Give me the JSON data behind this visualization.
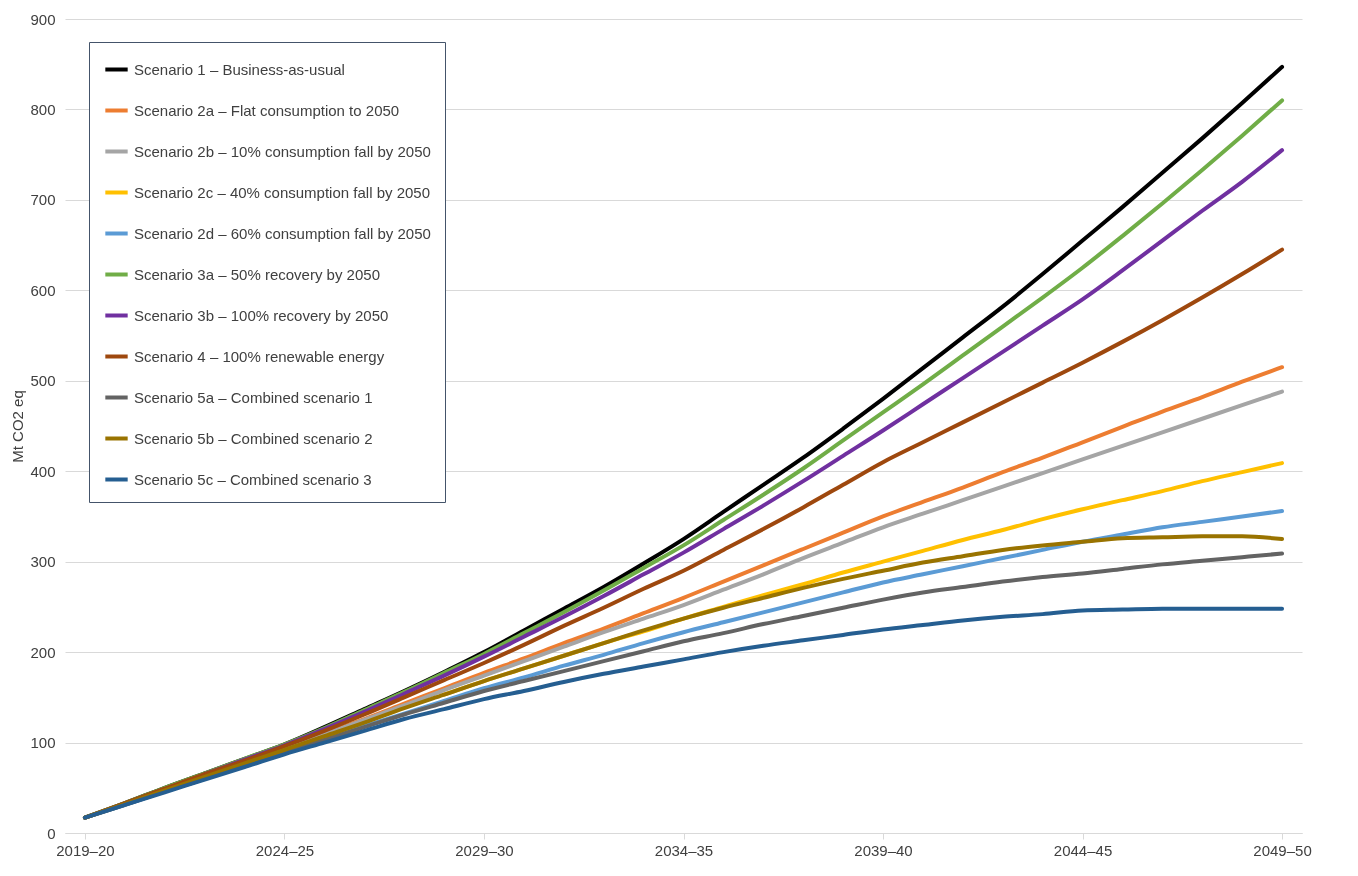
{
  "chart_data": {
    "type": "line",
    "ylabel": "Mt CO2 eq",
    "categories": [
      "2019–20",
      null,
      null,
      null,
      null,
      "2024–25",
      null,
      null,
      null,
      null,
      "2029–30",
      null,
      null,
      null,
      null,
      "2034–35",
      null,
      null,
      null,
      null,
      "2039–40",
      null,
      null,
      null,
      null,
      "2044–45",
      null,
      null,
      null,
      null,
      "2049–50"
    ],
    "ylim": [
      0,
      900
    ],
    "yticks": [
      0,
      100,
      200,
      300,
      400,
      500,
      600,
      700,
      800,
      900
    ],
    "grid": "y",
    "legend": "top left",
    "series": [
      {
        "name": "Scenario 1 – Business-as-usual",
        "color": "#000000",
        "values": [
          17,
          33,
          50,
          66,
          82,
          98,
          117,
          137,
          157,
          178,
          200,
          224,
          248,
          272,
          298,
          325,
          355,
          385,
          415,
          447,
          480,
          514,
          548,
          582,
          618,
          655,
          692,
          730,
          768,
          807,
          847
        ]
      },
      {
        "name": "Scenario 2a – Flat consumption to 2050",
        "color": "#ed7d31",
        "values": [
          null,
          null,
          null,
          null,
          null,
          null,
          110,
          126,
          143,
          160,
          177,
          193,
          210,
          226,
          243,
          260,
          278,
          296,
          314,
          332,
          350,
          366,
          382,
          399,
          415,
          432,
          449,
          466,
          482,
          499,
          515
        ]
      },
      {
        "name": "Scenario 2b – 10% consumption fall by 2050",
        "color": "#a5a5a5",
        "values": [
          17,
          32,
          48,
          63,
          78,
          93,
          109,
          125,
          141,
          158,
          174,
          190,
          206,
          222,
          237,
          252,
          269,
          286,
          304,
          321,
          338,
          353,
          368,
          383,
          398,
          413,
          428,
          443,
          458,
          473,
          488
        ]
      },
      {
        "name": "Scenario 2c – 40% consumption fall by 2050",
        "color": "#ffc000",
        "values": [
          null,
          null,
          null,
          null,
          null,
          null,
          null,
          null,
          null,
          153,
          168,
          182,
          196,
          210,
          223,
          237,
          250,
          263,
          275,
          288,
          300,
          312,
          324,
          335,
          347,
          358,
          368,
          378,
          389,
          399,
          409
        ]
      },
      {
        "name": "Scenario 2d – 60% consumption fall by 2050",
        "color": "#5b9bd5",
        "values": [
          17,
          31,
          46,
          60,
          75,
          90,
          104,
          118,
          132,
          146,
          160,
          172,
          185,
          197,
          210,
          222,
          233,
          244,
          255,
          266,
          277,
          286,
          295,
          304,
          313,
          322,
          330,
          338,
          344,
          350,
          356
        ]
      },
      {
        "name": "Scenario 3a – 50% recovery by 2050",
        "color": "#70ad47",
        "values": [
          17,
          33,
          50,
          66,
          82,
          98,
          116,
          136,
          156,
          177,
          198,
          221,
          244,
          268,
          293,
          318,
          346,
          374,
          403,
          434,
          465,
          496,
          528,
          560,
          592,
          625,
          660,
          696,
          733,
          771,
          810
        ]
      },
      {
        "name": "Scenario 3b – 100% recovery by 2050",
        "color": "#7030a0",
        "values": [
          null,
          null,
          null,
          65,
          81,
          97,
          115,
          134,
          154,
          174,
          195,
          217,
          239,
          262,
          286,
          310,
          336,
          362,
          389,
          417,
          445,
          474,
          503,
          532,
          561,
          590,
          622,
          655,
          688,
          720,
          755
        ]
      },
      {
        "name": "Scenario 4 – 100% renewable energy",
        "color": "#9e480e",
        "values": [
          17,
          33,
          49,
          65,
          80,
          96,
          113,
          131,
          150,
          169,
          188,
          208,
          229,
          249,
          270,
          290,
          313,
          336,
          360,
          385,
          410,
          432,
          454,
          476,
          498,
          520,
          543,
          567,
          592,
          618,
          645
        ]
      },
      {
        "name": "Scenario 5a – Combined scenario 1",
        "color": "#636363",
        "values": [
          17,
          31,
          46,
          60,
          75,
          89,
          103,
          117,
          131,
          144,
          157,
          168,
          179,
          190,
          201,
          212,
          221,
          231,
          240,
          249,
          258,
          266,
          272,
          278,
          283,
          287,
          292,
          297,
          301,
          305,
          309
        ]
      },
      {
        "name": "Scenario 5b – Combined scenario 2",
        "color": "#997300",
        "values": [
          17,
          32,
          47,
          62,
          77,
          92,
          107,
          122,
          138,
          153,
          168,
          182,
          196,
          210,
          224,
          237,
          249,
          260,
          271,
          281,
          290,
          299,
          306,
          313,
          318,
          322,
          326,
          327,
          328,
          328,
          325
        ]
      },
      {
        "name": "Scenario 5c – Combined scenario 3",
        "color": "#255e91",
        "values": [
          17,
          31,
          45,
          59,
          73,
          87,
          100,
          113,
          126,
          137,
          148,
          157,
          167,
          176,
          184,
          192,
          200,
          207,
          213,
          219,
          225,
          230,
          235,
          239,
          242,
          246,
          247,
          248,
          248,
          248,
          248
        ]
      }
    ]
  }
}
